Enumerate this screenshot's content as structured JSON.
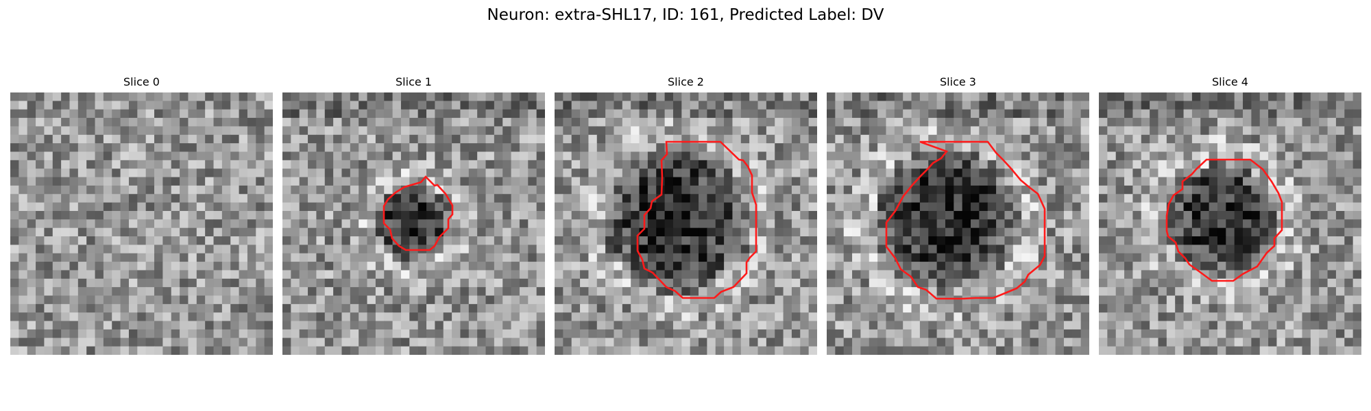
{
  "figure": {
    "title": "Neuron: extra-SHL17, ID: 161, Predicted Label: DV"
  },
  "colors": {
    "contour": "#ff1a1a",
    "background": "#ffffff"
  },
  "panels": [
    {
      "title": "Slice 0",
      "has_contour": false
    },
    {
      "title": "Slice 1",
      "has_contour": true
    },
    {
      "title": "Slice 2",
      "has_contour": true
    },
    {
      "title": "Slice 3",
      "has_contour": true
    },
    {
      "title": "Slice 4",
      "has_contour": true
    }
  ]
}
